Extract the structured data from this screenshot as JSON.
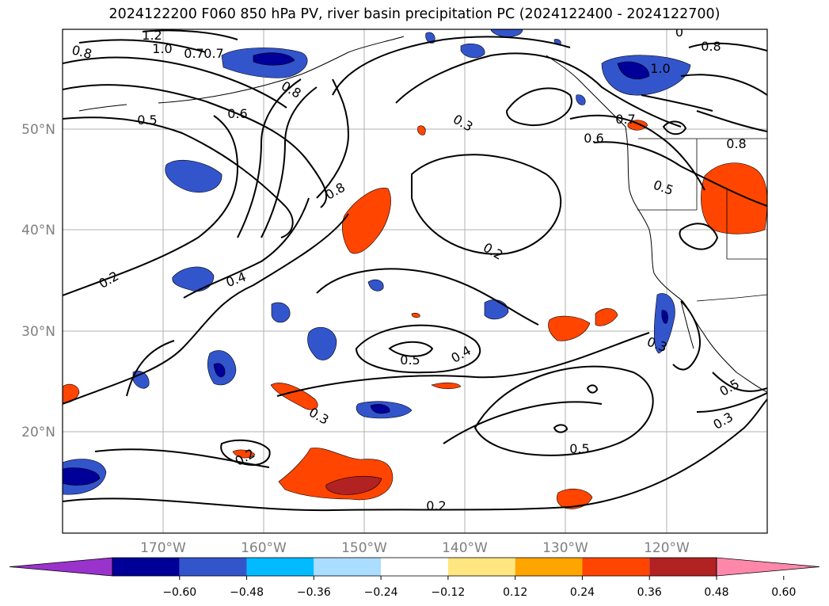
{
  "title": "2024122200 F060 850 hPa PV, river basin precipitation PC (2024122400 - 2024122700)",
  "map": {
    "lon_ticks": [
      "170°W",
      "160°W",
      "150°W",
      "140°W",
      "130°W",
      "120°W"
    ],
    "lat_ticks": [
      "50°N",
      "40°N",
      "30°N",
      "20°N"
    ],
    "grid": true
  },
  "contour_labels": [
    "1.2",
    "1.0",
    "0.8",
    "0.7",
    "0.7",
    "0.8",
    "0.5",
    "0.6",
    "0.3",
    "0.8",
    "0.2",
    "0.4",
    "0.2",
    "0.5",
    "0.4",
    "0.3",
    "0.2",
    "0.5",
    "0.2",
    "0",
    "0.8",
    "1.0",
    "0.7",
    "0.6",
    "0.8",
    "0.5",
    "0.3",
    "0.5",
    "0.3"
  ],
  "colorbar": {
    "ticks": [
      "−0.60",
      "−0.48",
      "−0.36",
      "−0.24",
      "−0.12",
      "0.12",
      "0.24",
      "0.36",
      "0.48",
      "0.60"
    ],
    "colors": [
      "#9933cc",
      "#000099",
      "#3355cc",
      "#00bbff",
      "#aaddff",
      "#ffffff",
      "#ffe680",
      "#ffa500",
      "#ff4500",
      "#b22222",
      "#ff88aa"
    ]
  }
}
